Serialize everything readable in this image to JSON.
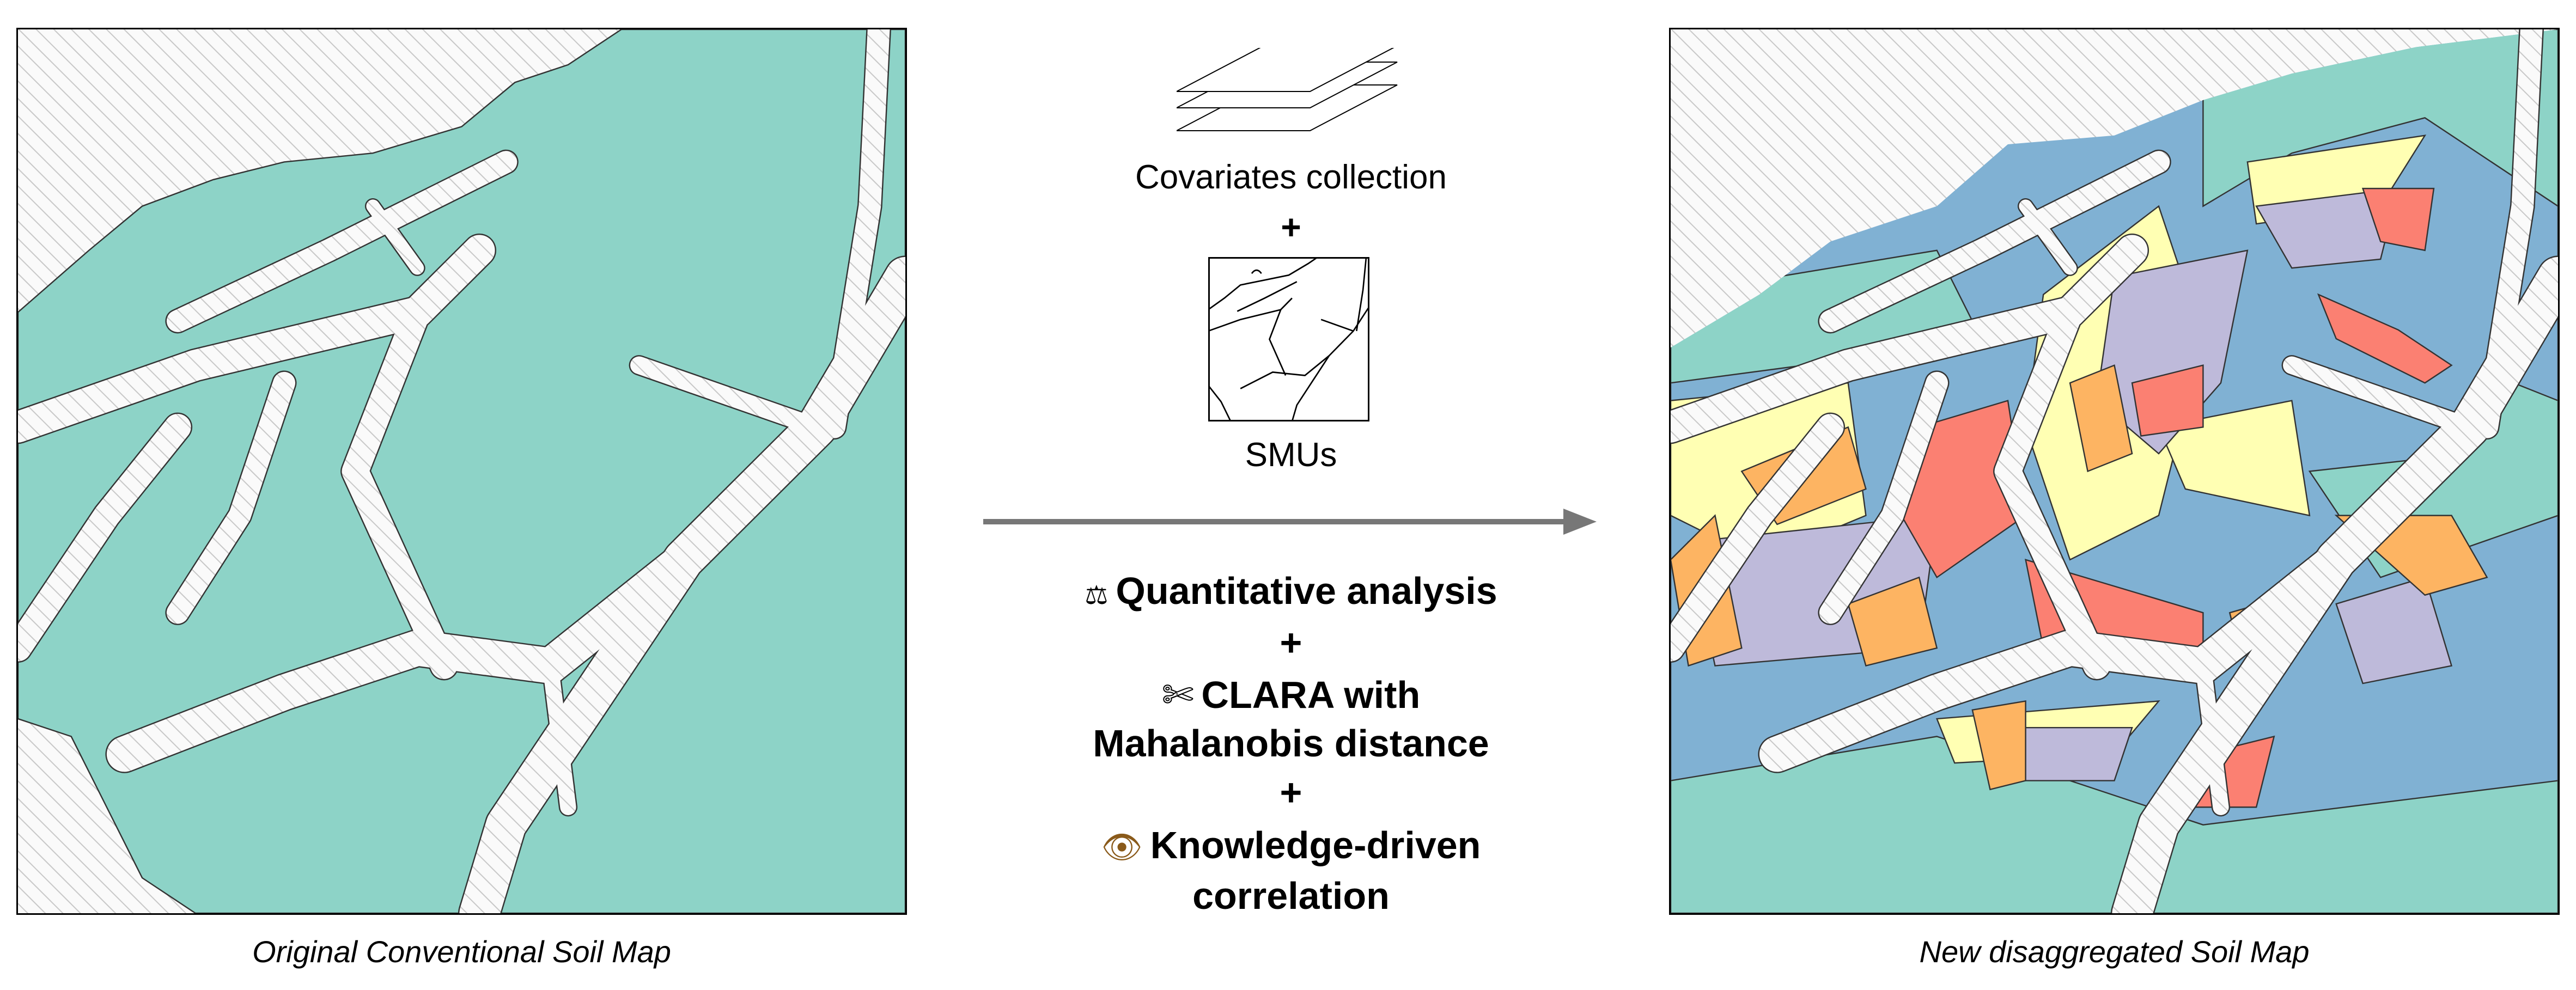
{
  "left_panel": {
    "caption": "Original Conventional Soil Map"
  },
  "right_panel": {
    "caption": "New disaggregated Soil Map"
  },
  "inputs": {
    "layers_icon": "stacked-layers-icon",
    "covariates_label": "Covariates collection",
    "plus": "+",
    "smu_icon": "smu-outline-map-icon",
    "smus_label": "SMUs"
  },
  "methods": {
    "quantitative": {
      "icon": "balance-scale-icon",
      "glyph": "⚖",
      "label": "Quantitative analysis"
    },
    "plus": "+",
    "clara": {
      "icon": "scissors-icon",
      "glyph": "✄",
      "label_line1": "CLARA with",
      "label_line2": "Mahalanobis distance"
    },
    "knowledge": {
      "icon": "eye-icon",
      "glyph": "👁",
      "label_line1": "Knowledge-driven",
      "label_line2": "correlation"
    }
  },
  "colors": {
    "teal": "#8dd3c7",
    "blue": "#80b1d3",
    "yellow": "#ffffb3",
    "purple": "#bebada",
    "red": "#fb8072",
    "orange": "#fdb462",
    "arrow": "#777777",
    "hatch": "#bdbdbd"
  }
}
